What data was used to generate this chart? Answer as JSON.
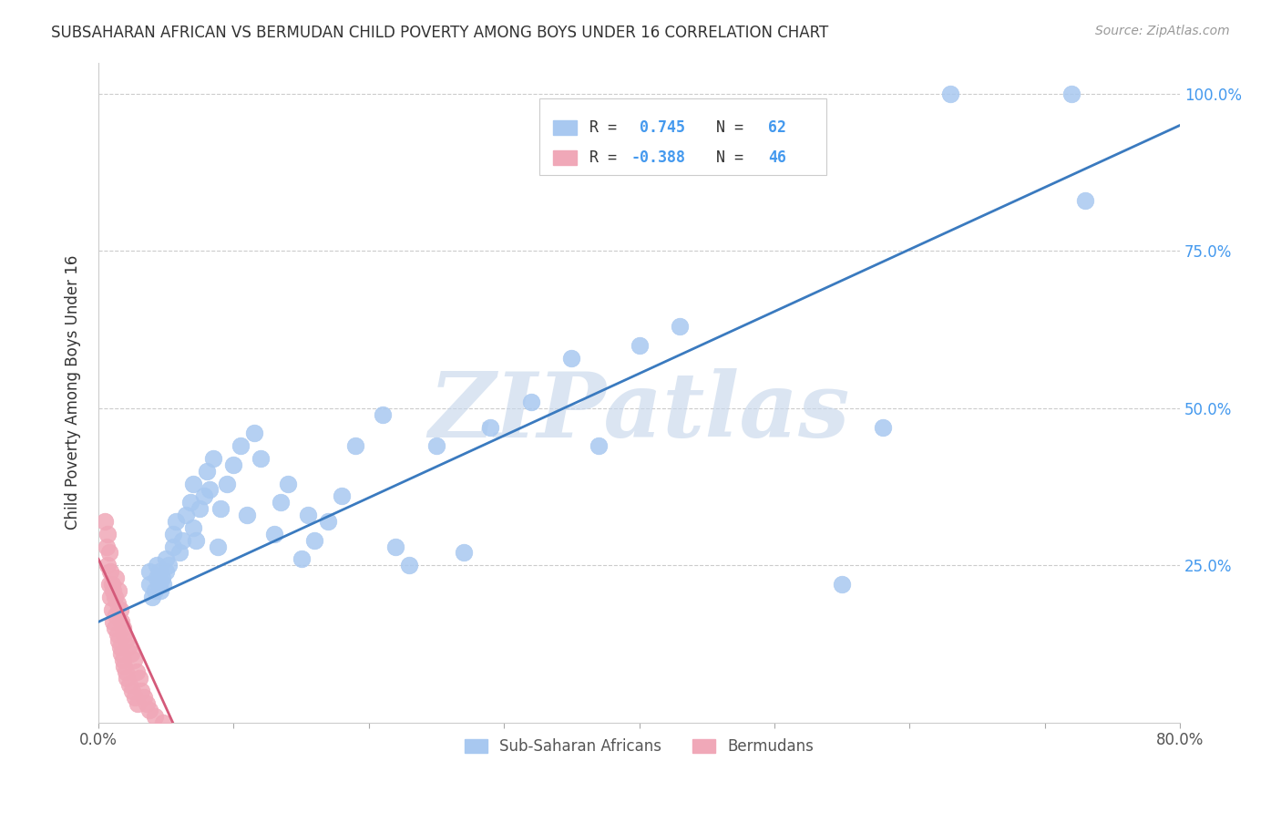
{
  "title": "SUBSAHARAN AFRICAN VS BERMUDAN CHILD POVERTY AMONG BOYS UNDER 16 CORRELATION CHART",
  "source": "Source: ZipAtlas.com",
  "ylabel": "Child Poverty Among Boys Under 16",
  "xlim": [
    0.0,
    0.8
  ],
  "ylim": [
    0.0,
    1.05
  ],
  "blue_R": 0.745,
  "blue_N": 62,
  "pink_R": -0.388,
  "pink_N": 46,
  "blue_color": "#a8c8f0",
  "pink_color": "#f0a8b8",
  "blue_line_color": "#3a7abf",
  "pink_line_color": "#d45a7a",
  "watermark": "ZIPatlas",
  "watermark_color": "#c8d8ec",
  "label_blue": "Sub-Saharan Africans",
  "label_pink": "Bermudans",
  "right_tick_color": "#4499ee",
  "blue_x": [
    0.038,
    0.038,
    0.04,
    0.042,
    0.043,
    0.043,
    0.045,
    0.045,
    0.046,
    0.047,
    0.048,
    0.05,
    0.05,
    0.052,
    0.055,
    0.055,
    0.057,
    0.06,
    0.062,
    0.065,
    0.068,
    0.07,
    0.07,
    0.072,
    0.075,
    0.078,
    0.08,
    0.082,
    0.085,
    0.088,
    0.09,
    0.095,
    0.1,
    0.105,
    0.11,
    0.115,
    0.12,
    0.13,
    0.135,
    0.14,
    0.15,
    0.155,
    0.16,
    0.17,
    0.18,
    0.19,
    0.21,
    0.22,
    0.23,
    0.25,
    0.27,
    0.29,
    0.32,
    0.35,
    0.37,
    0.4,
    0.43,
    0.55,
    0.58,
    0.63,
    0.72,
    0.73
  ],
  "blue_y": [
    0.22,
    0.24,
    0.2,
    0.21,
    0.23,
    0.25,
    0.22,
    0.24,
    0.21,
    0.23,
    0.22,
    0.24,
    0.26,
    0.25,
    0.28,
    0.3,
    0.32,
    0.27,
    0.29,
    0.33,
    0.35,
    0.31,
    0.38,
    0.29,
    0.34,
    0.36,
    0.4,
    0.37,
    0.42,
    0.28,
    0.34,
    0.38,
    0.41,
    0.44,
    0.33,
    0.46,
    0.42,
    0.3,
    0.35,
    0.38,
    0.26,
    0.33,
    0.29,
    0.32,
    0.36,
    0.44,
    0.49,
    0.28,
    0.25,
    0.44,
    0.27,
    0.47,
    0.51,
    0.58,
    0.44,
    0.6,
    0.63,
    0.22,
    0.47,
    1.0,
    1.0,
    0.83
  ],
  "pink_x": [
    0.005,
    0.006,
    0.007,
    0.007,
    0.008,
    0.008,
    0.009,
    0.009,
    0.01,
    0.01,
    0.011,
    0.011,
    0.012,
    0.012,
    0.013,
    0.013,
    0.014,
    0.014,
    0.015,
    0.015,
    0.016,
    0.016,
    0.017,
    0.017,
    0.018,
    0.018,
    0.019,
    0.019,
    0.02,
    0.02,
    0.021,
    0.022,
    0.023,
    0.024,
    0.025,
    0.026,
    0.027,
    0.028,
    0.029,
    0.03,
    0.032,
    0.034,
    0.036,
    0.038,
    0.042,
    0.048
  ],
  "pink_y": [
    0.32,
    0.28,
    0.25,
    0.3,
    0.22,
    0.27,
    0.2,
    0.24,
    0.18,
    0.22,
    0.16,
    0.21,
    0.15,
    0.2,
    0.17,
    0.23,
    0.14,
    0.19,
    0.13,
    0.21,
    0.12,
    0.18,
    0.11,
    0.16,
    0.1,
    0.15,
    0.09,
    0.14,
    0.08,
    0.13,
    0.07,
    0.12,
    0.06,
    0.11,
    0.05,
    0.1,
    0.04,
    0.08,
    0.03,
    0.07,
    0.05,
    0.04,
    0.03,
    0.02,
    0.01,
    0.0
  ]
}
